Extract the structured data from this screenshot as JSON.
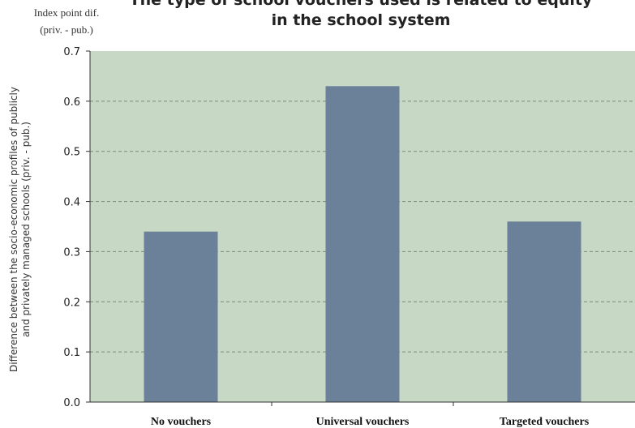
{
  "chart_data": {
    "type": "bar",
    "title_line1": "The type of school vouchers used is related to equity",
    "title_line2": "in the school system",
    "unit_label_line1": "Index point dif.",
    "unit_label_line2": "(priv. - pub.)",
    "ylabel_line1": "Difference between the socio-economic profiles of publicly",
    "ylabel_line2": "and privately managed schools (priv. - pub.)",
    "xlabel": "",
    "categories": [
      "No vouchers",
      "Universal vouchers",
      "Targeted vouchers"
    ],
    "values": [
      0.34,
      0.63,
      0.36
    ],
    "ylim": [
      0,
      0.7
    ],
    "yticks": [
      0.0,
      0.1,
      0.2,
      0.3,
      0.4,
      0.5,
      0.6,
      0.7
    ],
    "ytick_labels": [
      "0.0",
      "0.1",
      "0.2",
      "0.3",
      "0.4",
      "0.5",
      "0.6",
      "0.7"
    ],
    "grid": true,
    "grid_style": "dashed",
    "legend": "none",
    "colors": {
      "plot_background": "#c7d9c5",
      "bar": "#6a8199",
      "grid": "#7b8b7b",
      "axis": "#333333"
    }
  }
}
